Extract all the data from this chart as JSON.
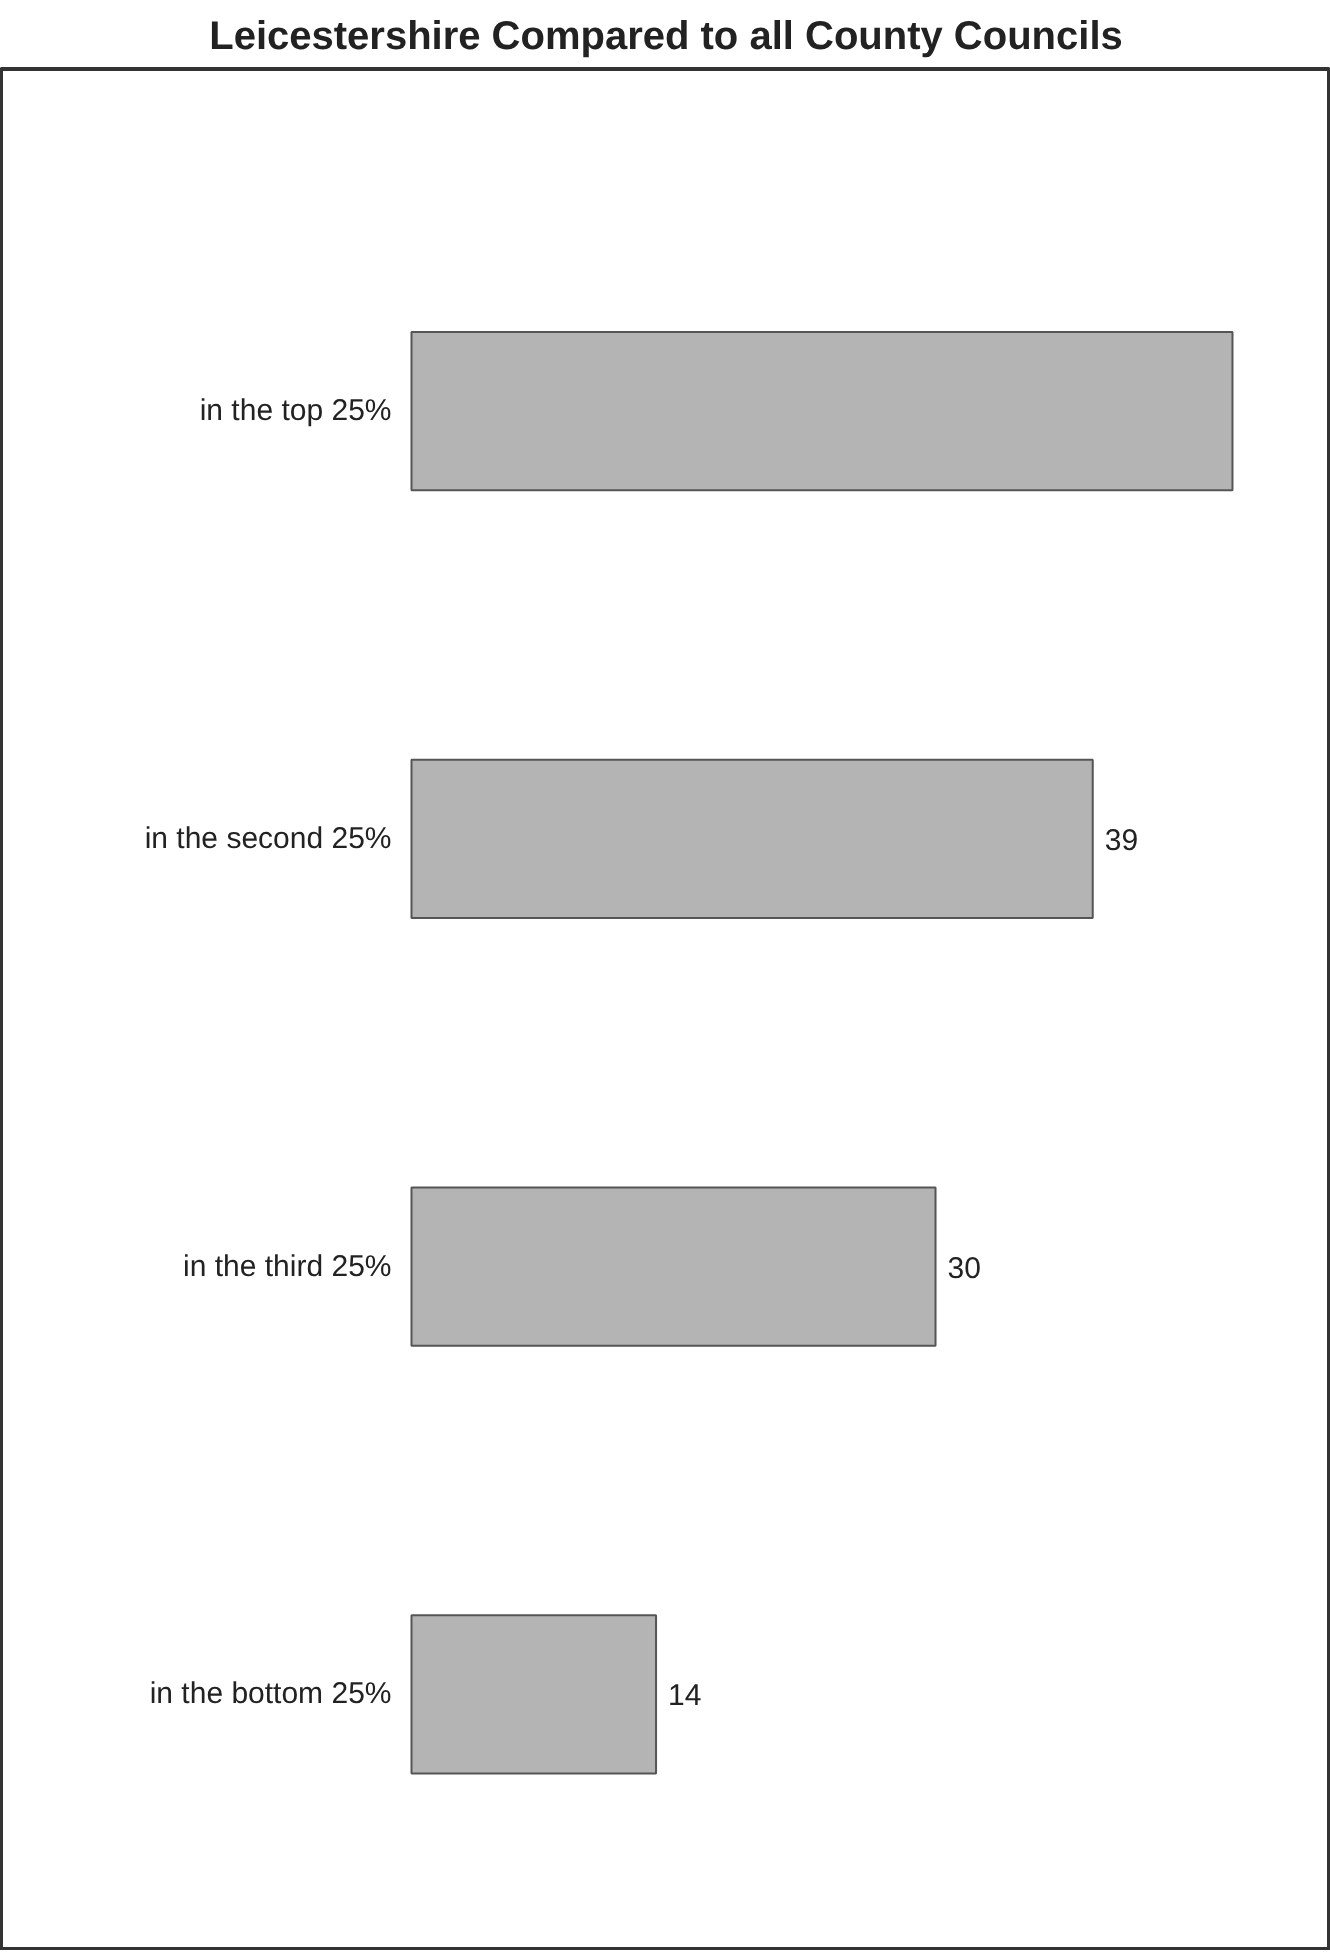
{
  "chart_data": {
    "type": "bar",
    "orientation": "horizontal",
    "title": "Leicestershire Compared to all County Councils",
    "categories": [
      "in the top 25%",
      "in the second 25%",
      "in the third 25%",
      "in the bottom 25%"
    ],
    "values": [
      47,
      39,
      30,
      14
    ],
    "value_labels": [
      null,
      "39",
      "30",
      "14"
    ],
    "color": "#b4b4b4"
  }
}
